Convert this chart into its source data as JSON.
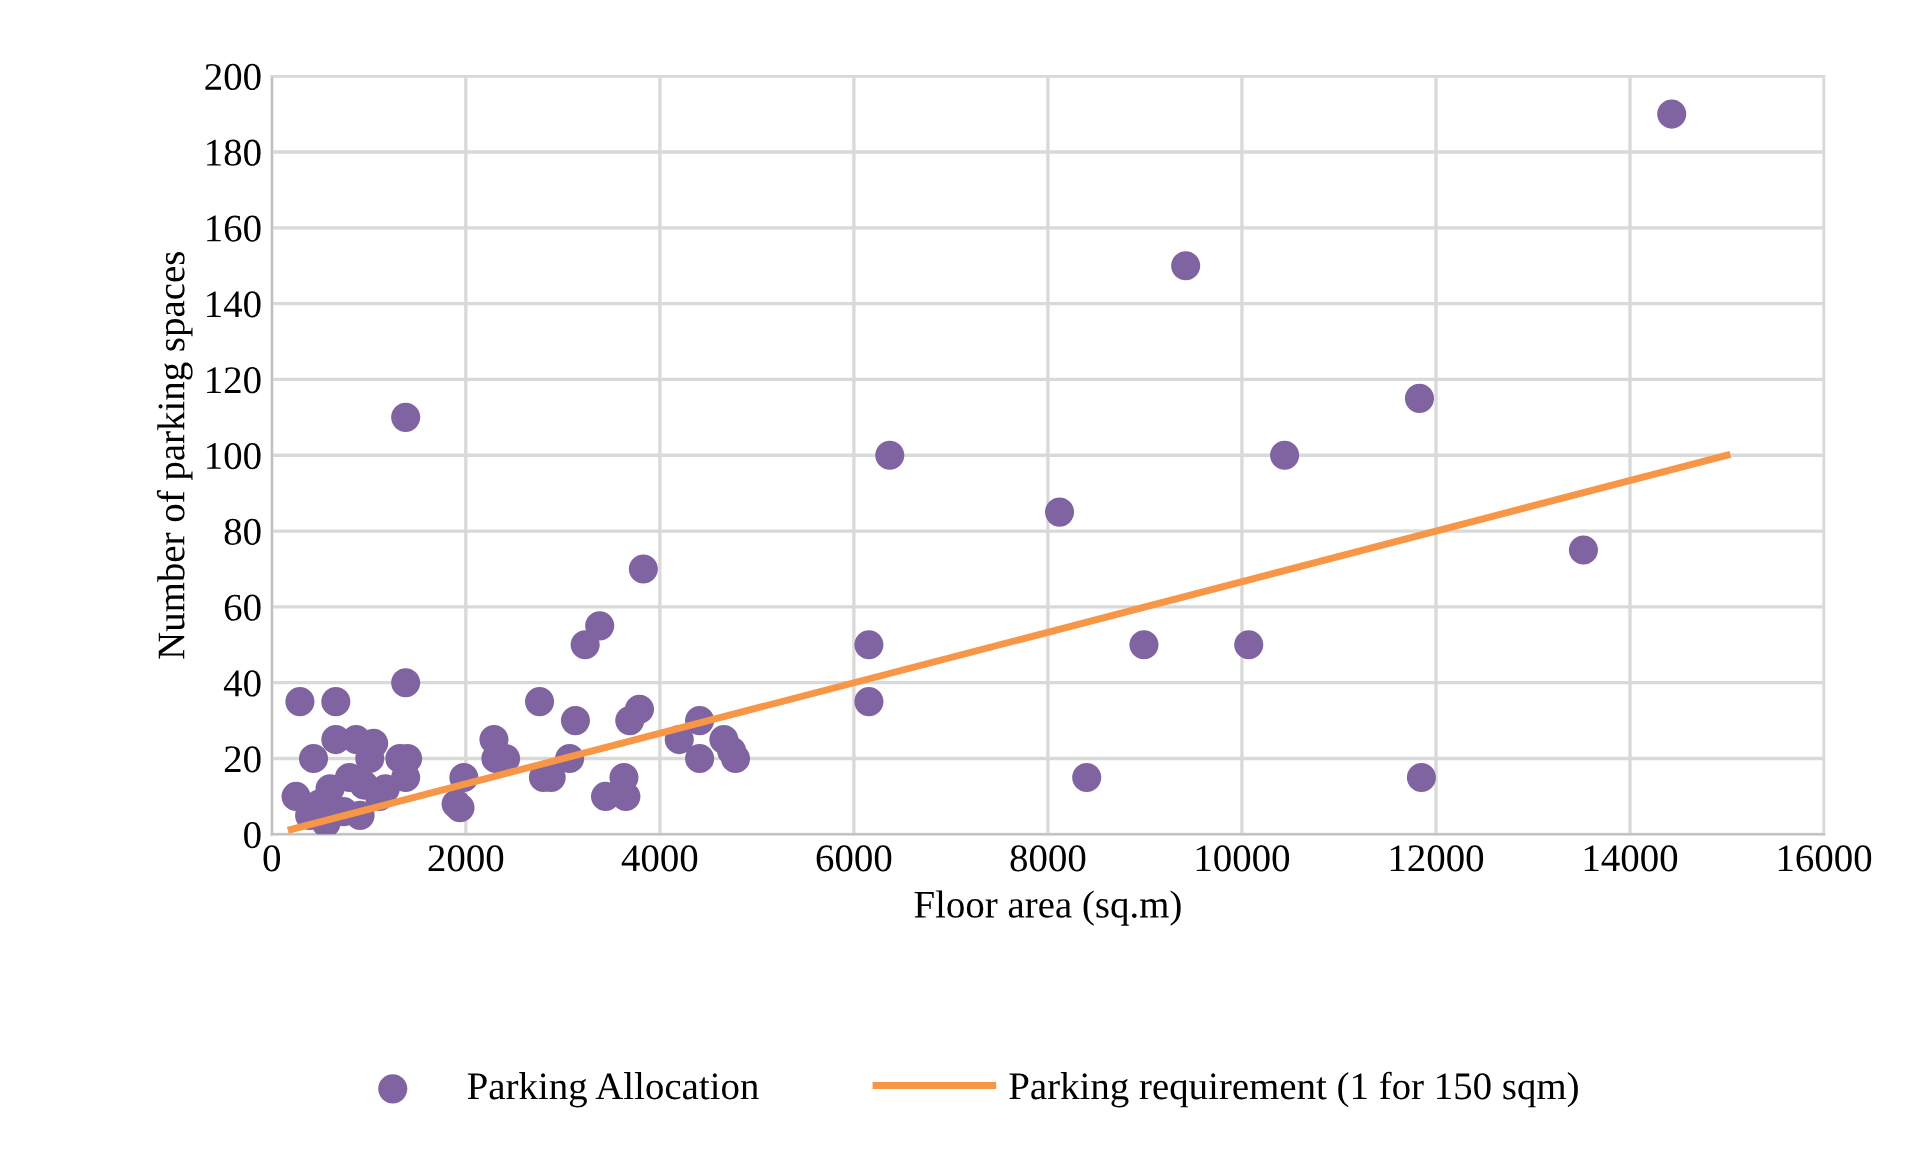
{
  "chart_data": {
    "type": "scatter",
    "xlabel": "Floor area (sq.m)",
    "ylabel": "Number of parking spaces",
    "xlim": [
      0,
      16000
    ],
    "xticks": [
      0,
      2000,
      4000,
      6000,
      8000,
      10000,
      12000,
      14000,
      16000
    ],
    "ylim": [
      0,
      200
    ],
    "yticks": [
      0,
      20,
      40,
      60,
      80,
      100,
      120,
      140,
      160,
      180,
      200
    ],
    "grid": true,
    "legend": "bottom",
    "series": [
      {
        "name": "Parking Allocation",
        "marker": "circle",
        "color": "#8064a2",
        "x": [
          250,
          290,
          390,
          430,
          490,
          560,
          600,
          660,
          660,
          740,
          800,
          870,
          910,
          950,
          1010,
          1050,
          1110,
          1170,
          1320,
          1380,
          1380,
          1380,
          1400,
          1900,
          1940,
          1980,
          2290,
          2310,
          2410,
          2760,
          2800,
          2880,
          3070,
          3130,
          3230,
          3380,
          3440,
          3630,
          3650,
          3690,
          3790,
          3830,
          4200,
          4410,
          4410,
          4660,
          4740,
          4780,
          6155,
          6155,
          6370,
          8120,
          8400,
          8990,
          9420,
          10070,
          10440,
          11830,
          11850,
          13520,
          14430
        ],
        "values": [
          10,
          35,
          5,
          20,
          8,
          3,
          12,
          25,
          35,
          6,
          15,
          25,
          5,
          13,
          20,
          24,
          10,
          12,
          20,
          40,
          110,
          15,
          20,
          8,
          7,
          15,
          25,
          20,
          20,
          35,
          15,
          15,
          20,
          30,
          50,
          55,
          10,
          15,
          10,
          30,
          33,
          70,
          25,
          30,
          20,
          25,
          22,
          20,
          50,
          35,
          100,
          85,
          15,
          50,
          150,
          50,
          100,
          115,
          15,
          75,
          190
        ]
      },
      {
        "name": "Parking requirement (1 for 150 sqm)",
        "type": "line",
        "marker": "none",
        "color": "#f79646",
        "x": [
          200,
          15000
        ],
        "values": [
          1.3,
          100
        ]
      }
    ]
  }
}
